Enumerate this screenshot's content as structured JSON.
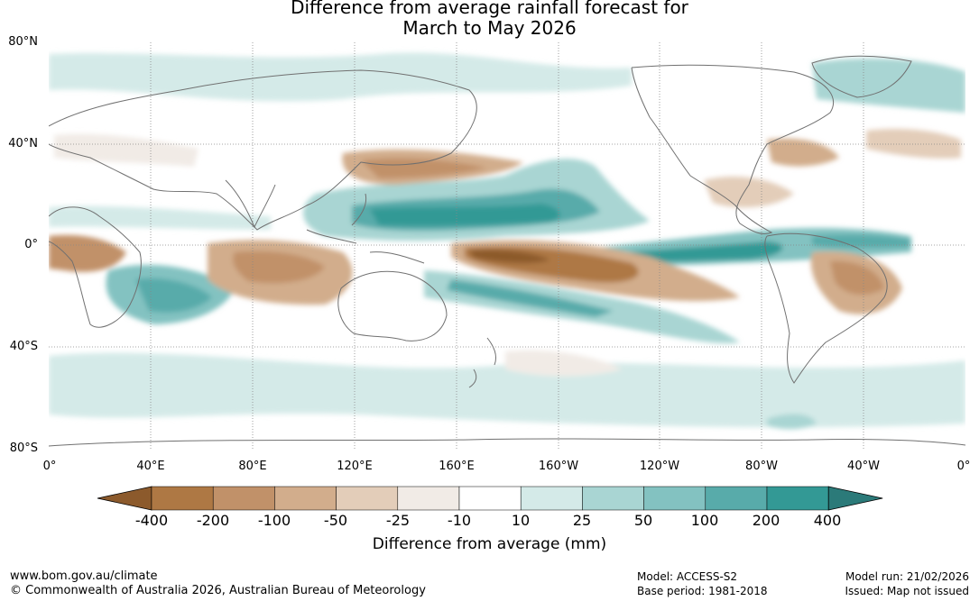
{
  "title": {
    "line1": "Difference from average rainfall forecast for",
    "line2": "March to May 2026"
  },
  "axes": {
    "lat_labels": [
      "80°N",
      "40°N",
      "0°",
      "40°S",
      "80°S"
    ],
    "lon_labels": [
      "0°",
      "40°E",
      "80°E",
      "120°E",
      "160°E",
      "160°W",
      "120°W",
      "80°W",
      "40°W",
      "0°"
    ]
  },
  "colorbar": {
    "title": "Difference from average (mm)",
    "labels": [
      "-400",
      "-200",
      "-100",
      "-50",
      "-25",
      "-10",
      "10",
      "25",
      "50",
      "100",
      "200",
      "400"
    ],
    "colors": [
      "#8c5a2c",
      "#ae7844",
      "#c19169",
      "#d2ad8c",
      "#e3cdb9",
      "#f1ebe6",
      "#ffffff",
      "#d4eae8",
      "#a9d5d3",
      "#83c2c1",
      "#58abaa",
      "#339995",
      "#2b7a79"
    ]
  },
  "footer": {
    "website": "www.bom.gov.au/climate",
    "copyright": "© Commonwealth of Australia 2026, Australian Bureau of Meteorology",
    "model": "Model: ACCESS-S2",
    "base_period": "Base period: 1981-2018",
    "model_run": "Model run: 21/02/2026",
    "issued": "Issued: Map not issued"
  }
}
